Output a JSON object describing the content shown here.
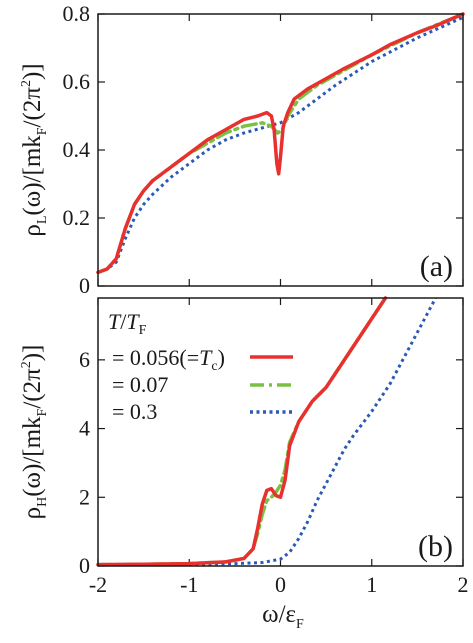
{
  "chart_data": [
    {
      "type": "line",
      "panel_label": "(a)",
      "ylabel": {
        "main": "ρ",
        "sub": "L",
        "rest": "(ω)/[mk",
        "subF": "F",
        "tail": "/(2π",
        "sup": "2",
        "end": ")]"
      },
      "xlim": [
        -2,
        2
      ],
      "ylim": [
        0,
        0.8
      ],
      "yticks": [
        "0",
        "0.2",
        "0.4",
        "0.6",
        "0.8"
      ],
      "series": [
        {
          "color": "#e8302e",
          "dash": "solid",
          "points": [
            [
              -2,
              0.04
            ],
            [
              -1.9,
              0.05
            ],
            [
              -1.8,
              0.08
            ],
            [
              -1.7,
              0.17
            ],
            [
              -1.6,
              0.24
            ],
            [
              -1.5,
              0.28
            ],
            [
              -1.4,
              0.31
            ],
            [
              -1.2,
              0.35
            ],
            [
              -1.0,
              0.39
            ],
            [
              -0.8,
              0.43
            ],
            [
              -0.6,
              0.46
            ],
            [
              -0.4,
              0.49
            ],
            [
              -0.25,
              0.5
            ],
            [
              -0.15,
              0.51
            ],
            [
              -0.1,
              0.5
            ],
            [
              -0.07,
              0.46
            ],
            [
              -0.04,
              0.36
            ],
            [
              -0.02,
              0.33
            ],
            [
              0.0,
              0.38
            ],
            [
              0.03,
              0.47
            ],
            [
              0.08,
              0.51
            ],
            [
              0.15,
              0.55
            ],
            [
              0.3,
              0.58
            ],
            [
              0.5,
              0.61
            ],
            [
              0.7,
              0.64
            ],
            [
              1.0,
              0.68
            ],
            [
              1.2,
              0.71
            ],
            [
              1.5,
              0.745
            ],
            [
              1.7,
              0.765
            ],
            [
              2.0,
              0.8
            ]
          ]
        },
        {
          "color": "#7ac143",
          "dash": "dashdot",
          "points": [
            [
              -2,
              0.04
            ],
            [
              -1.9,
              0.05
            ],
            [
              -1.8,
              0.08
            ],
            [
              -1.7,
              0.17
            ],
            [
              -1.6,
              0.24
            ],
            [
              -1.5,
              0.28
            ],
            [
              -1.4,
              0.31
            ],
            [
              -1.2,
              0.35
            ],
            [
              -1.0,
              0.39
            ],
            [
              -0.8,
              0.42
            ],
            [
              -0.6,
              0.45
            ],
            [
              -0.4,
              0.47
            ],
            [
              -0.2,
              0.48
            ],
            [
              -0.1,
              0.47
            ],
            [
              -0.03,
              0.45
            ],
            [
              0.02,
              0.46
            ],
            [
              0.08,
              0.5
            ],
            [
              0.2,
              0.55
            ],
            [
              0.4,
              0.59
            ],
            [
              0.6,
              0.62
            ],
            [
              1.0,
              0.68
            ],
            [
              1.5,
              0.745
            ],
            [
              2.0,
              0.8
            ]
          ]
        },
        {
          "color": "#2b5ab5",
          "dash": "dotted",
          "points": [
            [
              -2,
              0.04
            ],
            [
              -1.9,
              0.05
            ],
            [
              -1.8,
              0.07
            ],
            [
              -1.7,
              0.14
            ],
            [
              -1.6,
              0.2
            ],
            [
              -1.5,
              0.24
            ],
            [
              -1.4,
              0.27
            ],
            [
              -1.2,
              0.32
            ],
            [
              -1.0,
              0.36
            ],
            [
              -0.8,
              0.4
            ],
            [
              -0.6,
              0.43
            ],
            [
              -0.4,
              0.45
            ],
            [
              -0.2,
              0.465
            ],
            [
              0.0,
              0.48
            ],
            [
              0.2,
              0.51
            ],
            [
              0.4,
              0.55
            ],
            [
              0.6,
              0.59
            ],
            [
              1.0,
              0.66
            ],
            [
              1.5,
              0.73
            ],
            [
              2.0,
              0.79
            ]
          ]
        }
      ]
    },
    {
      "type": "line",
      "panel_label": "(b)",
      "ylabel": {
        "main": "ρ",
        "sub": "H",
        "rest": "(ω)/[mk",
        "subF": "F",
        "tail": "/(2π",
        "sup": "2",
        "end": ")]"
      },
      "xlabel": {
        "main": "ω/ε",
        "sub": "F"
      },
      "xlim": [
        -2,
        2
      ],
      "ylim": [
        0,
        7.8
      ],
      "xticks": [
        "-2",
        "-1",
        "0",
        "1",
        "2"
      ],
      "yticks": [
        "0",
        "2",
        "4",
        "6"
      ],
      "legend": {
        "title_T": "T",
        "title_slash": "/",
        "title_TF": "T",
        "title_sub": "F",
        "entries": [
          {
            "label_pre": "= 0.056(=",
            "label_T": "T",
            "label_sub": "c",
            "label_post": ")"
          },
          {
            "label_pre": "= 0.07"
          },
          {
            "label_pre": "= 0.3"
          }
        ]
      },
      "series": [
        {
          "color": "#e8302e",
          "dash": "solid",
          "points": [
            [
              -2,
              0.04
            ],
            [
              -1.5,
              0.05
            ],
            [
              -1.0,
              0.07
            ],
            [
              -0.6,
              0.12
            ],
            [
              -0.4,
              0.22
            ],
            [
              -0.3,
              0.5
            ],
            [
              -0.25,
              1.1
            ],
            [
              -0.2,
              1.8
            ],
            [
              -0.15,
              2.2
            ],
            [
              -0.1,
              2.25
            ],
            [
              -0.05,
              2.05
            ],
            [
              0.0,
              2.0
            ],
            [
              0.05,
              2.5
            ],
            [
              0.1,
              3.5
            ],
            [
              0.2,
              4.2
            ],
            [
              0.35,
              4.8
            ],
            [
              0.5,
              5.2
            ],
            [
              0.7,
              6.0
            ],
            [
              0.9,
              6.8
            ],
            [
              1.05,
              7.4
            ],
            [
              1.15,
              7.8
            ]
          ]
        },
        {
          "color": "#7ac143",
          "dash": "dashdot",
          "points": [
            [
              -2,
              0.04
            ],
            [
              -1.5,
              0.05
            ],
            [
              -1.0,
              0.07
            ],
            [
              -0.6,
              0.12
            ],
            [
              -0.4,
              0.22
            ],
            [
              -0.3,
              0.5
            ],
            [
              -0.25,
              0.95
            ],
            [
              -0.2,
              1.5
            ],
            [
              -0.15,
              1.9
            ],
            [
              -0.1,
              2.0
            ],
            [
              -0.05,
              2.15
            ],
            [
              0.0,
              2.35
            ],
            [
              0.05,
              2.8
            ],
            [
              0.1,
              3.6
            ],
            [
              0.2,
              4.2
            ],
            [
              0.35,
              4.8
            ],
            [
              0.5,
              5.2
            ],
            [
              0.7,
              6.0
            ],
            [
              0.9,
              6.8
            ],
            [
              1.05,
              7.4
            ],
            [
              1.15,
              7.8
            ]
          ]
        },
        {
          "color": "#2b5ab5",
          "dash": "dotted",
          "points": [
            [
              -2,
              0.04
            ],
            [
              -1.0,
              0.05
            ],
            [
              -0.5,
              0.07
            ],
            [
              -0.2,
              0.1
            ],
            [
              0.0,
              0.2
            ],
            [
              0.1,
              0.4
            ],
            [
              0.2,
              0.8
            ],
            [
              0.3,
              1.3
            ],
            [
              0.4,
              1.9
            ],
            [
              0.5,
              2.4
            ],
            [
              0.6,
              2.9
            ],
            [
              0.7,
              3.4
            ],
            [
              0.8,
              3.8
            ],
            [
              1.0,
              4.5
            ],
            [
              1.2,
              5.3
            ],
            [
              1.4,
              6.3
            ],
            [
              1.6,
              7.3
            ],
            [
              1.7,
              7.8
            ]
          ]
        }
      ]
    }
  ]
}
